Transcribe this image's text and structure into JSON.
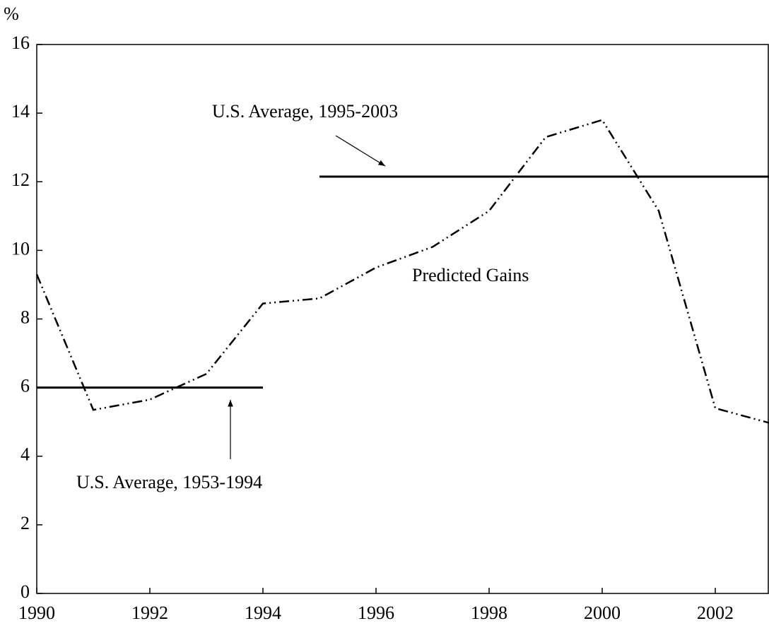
{
  "chart_data": {
    "type": "line",
    "y_label": "%",
    "x": [
      1990,
      1991,
      1992,
      1993,
      1994,
      1995,
      1996,
      1997,
      1998,
      1999,
      2000,
      2001,
      2002,
      2003
    ],
    "series": [
      {
        "name": "Predicted Gains",
        "color": "#000000",
        "values": [
          9.3,
          5.35,
          5.65,
          6.4,
          8.45,
          8.6,
          9.5,
          10.1,
          11.15,
          13.3,
          13.8,
          11.15,
          5.4,
          4.95
        ]
      }
    ],
    "reference_lines": [
      {
        "label": "U.S. Average, 1953-1994",
        "value": 6.0,
        "start": 1990,
        "end": 1994
      },
      {
        "label": "U.S. Average, 1995-2003",
        "value": 12.15,
        "start": 1995,
        "end": 2003
      }
    ],
    "xlim": [
      1990,
      2003
    ],
    "xticks": [
      1990,
      1992,
      1994,
      1996,
      1998,
      2000,
      2002
    ],
    "ylim": [
      0,
      16
    ],
    "yticks": [
      0,
      2,
      4,
      6,
      8,
      10,
      12,
      14,
      16
    ]
  }
}
